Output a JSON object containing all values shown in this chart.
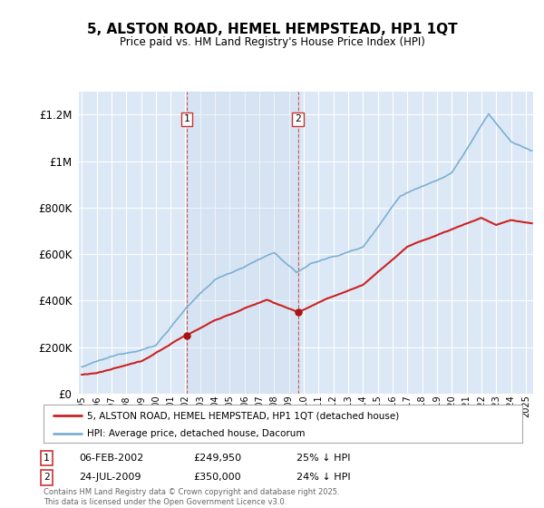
{
  "title": "5, ALSTON ROAD, HEMEL HEMPSTEAD, HP1 1QT",
  "subtitle": "Price paid vs. HM Land Registry's House Price Index (HPI)",
  "background_color": "#ffffff",
  "plot_bg_color": "#dce8f5",
  "grid_color": "#ffffff",
  "transaction1": {
    "date": "06-FEB-2002",
    "price": 249950,
    "hpi_diff": "25% ↓ HPI",
    "label": "1"
  },
  "transaction2": {
    "date": "24-JUL-2009",
    "price": 350000,
    "hpi_diff": "24% ↓ HPI",
    "label": "2"
  },
  "vline1_year": 2002.1,
  "vline2_year": 2009.6,
  "legend_red": "5, ALSTON ROAD, HEMEL HEMPSTEAD, HP1 1QT (detached house)",
  "legend_blue": "HPI: Average price, detached house, Dacorum",
  "footer": "Contains HM Land Registry data © Crown copyright and database right 2025.\nThis data is licensed under the Open Government Licence v3.0.",
  "hpi_color": "#7bafd4",
  "price_color": "#cc2222",
  "ylim": [
    0,
    1300000
  ],
  "xlim_start": 1994.8,
  "xlim_end": 2025.5,
  "marker_color": "#aa1111"
}
